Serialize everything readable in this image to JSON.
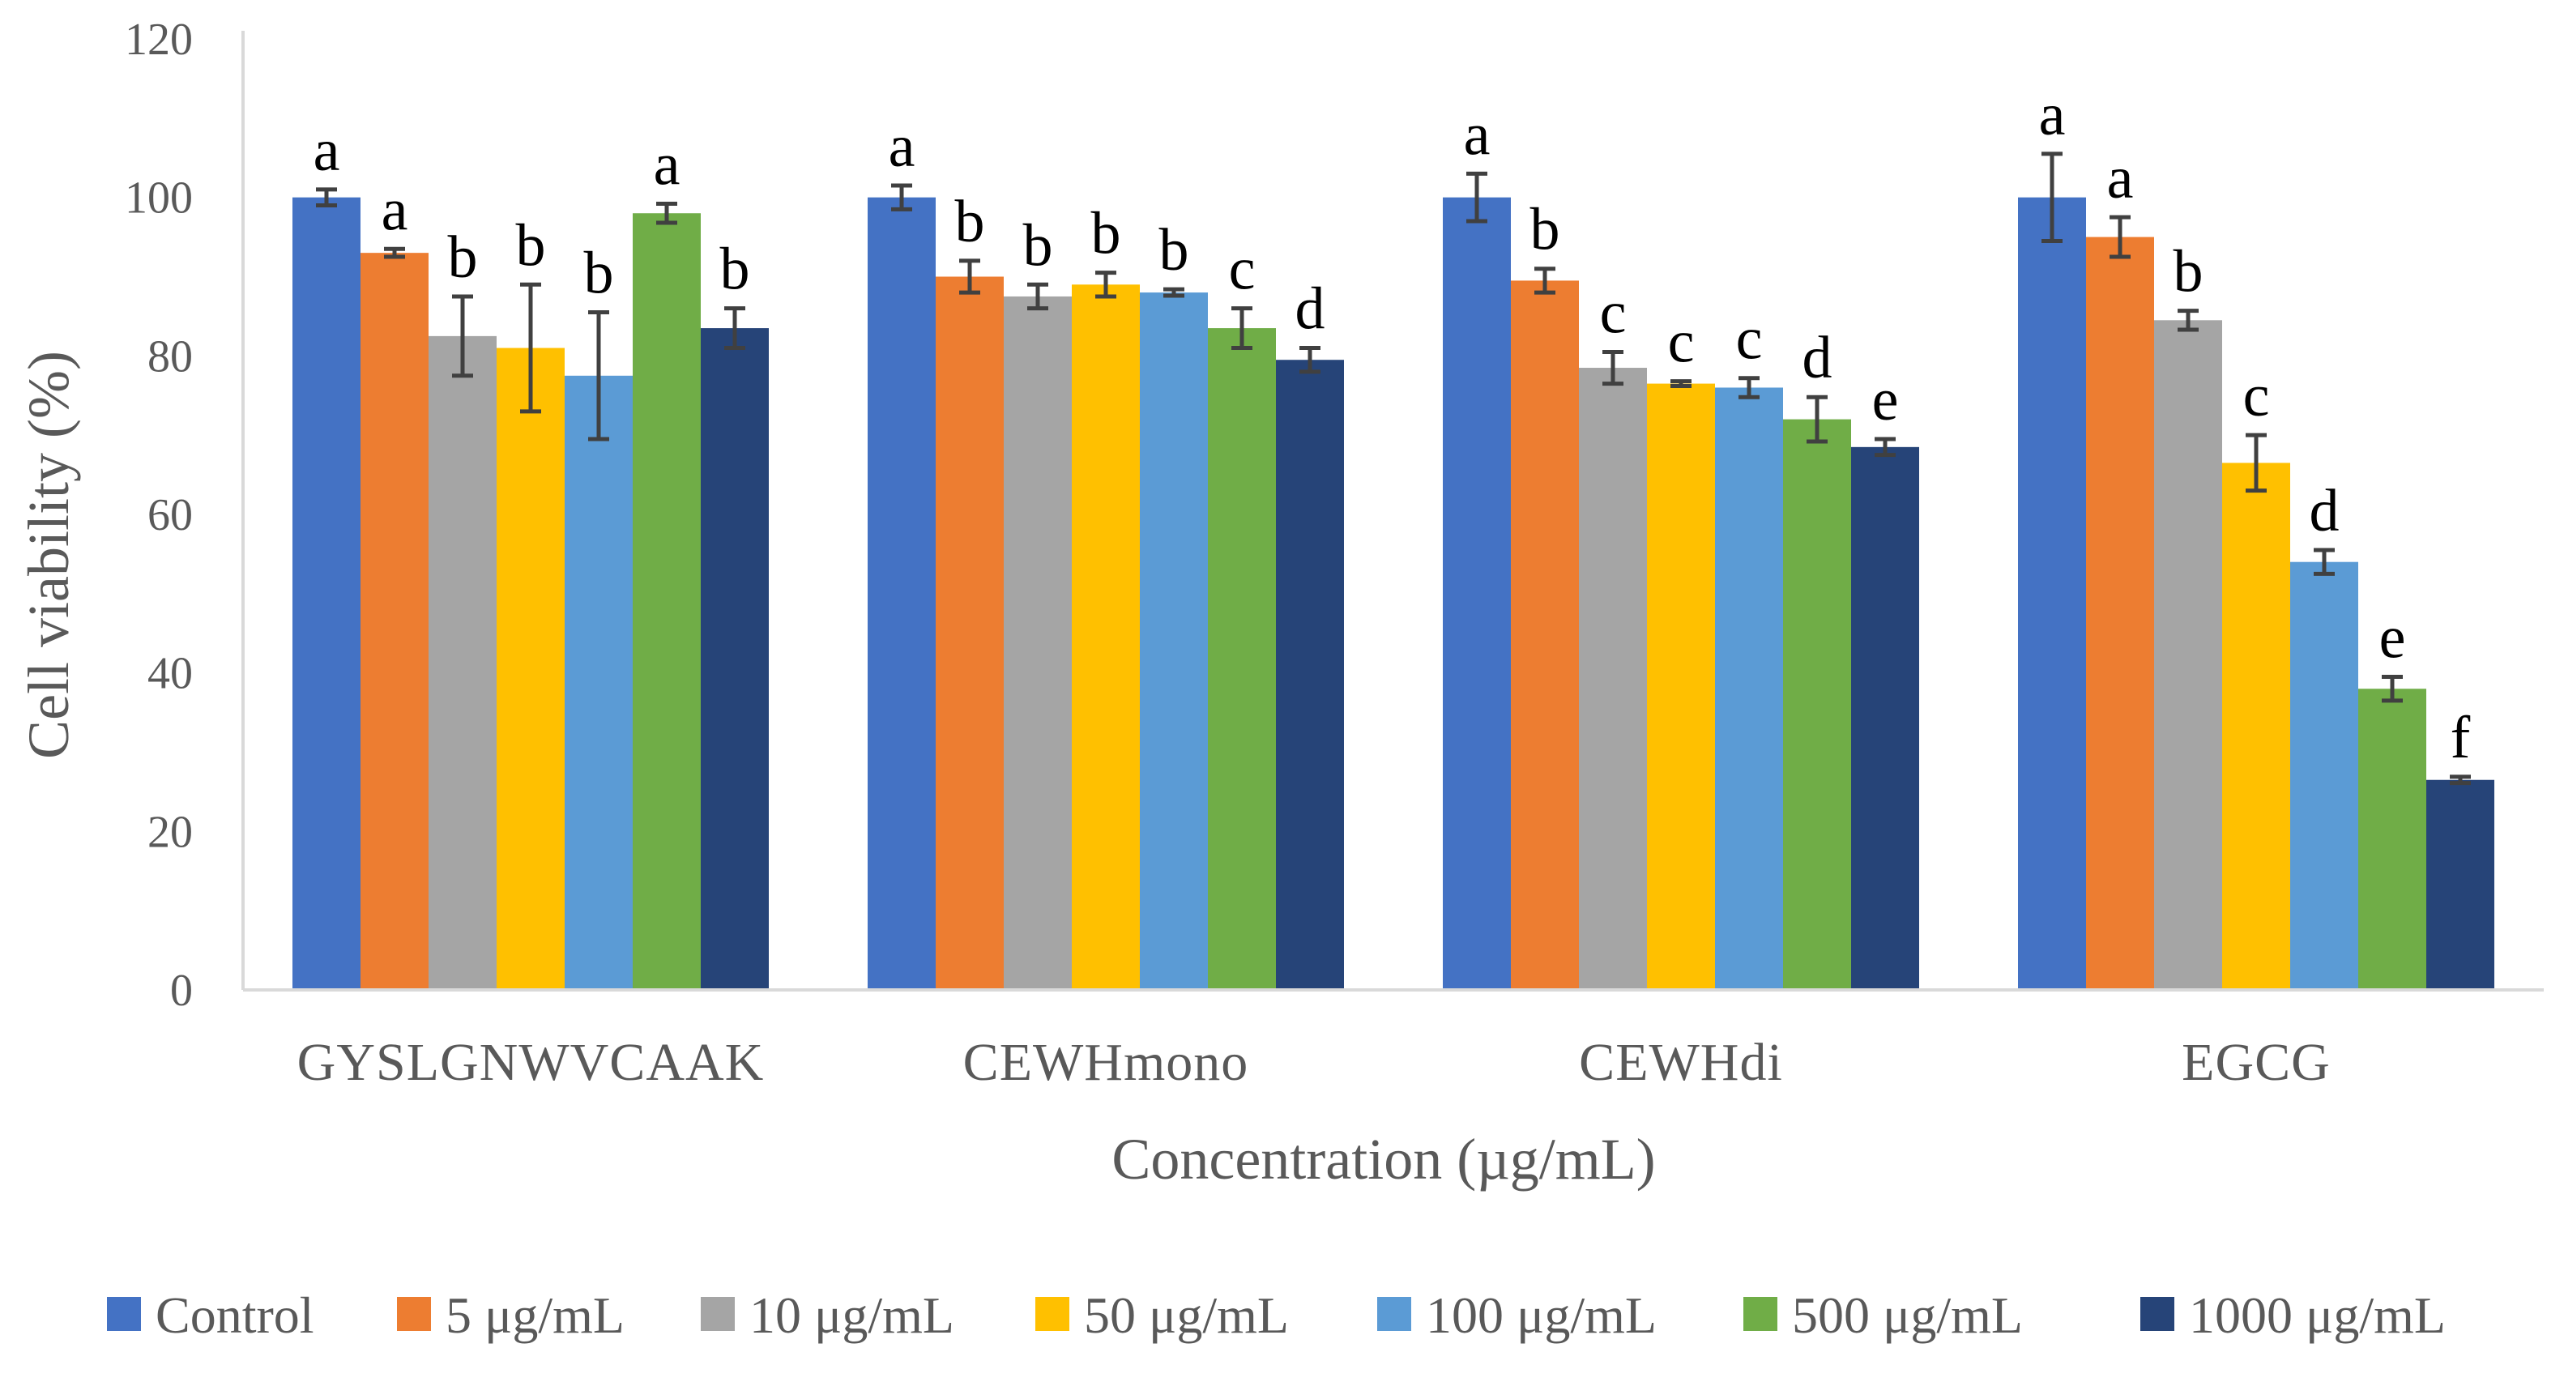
{
  "chart_data": {
    "type": "bar",
    "title": "",
    "xlabel": "Concentration (µg/mL)",
    "ylabel": "Cell viability (%)",
    "ylim": [
      0,
      120
    ],
    "yticks": [
      0,
      20,
      40,
      60,
      80,
      100,
      120
    ],
    "grid": false,
    "legend_position": "bottom",
    "categories": [
      "GYSLGNWVCAAK",
      "CEWHmono",
      "CEWHdi",
      "EGCG"
    ],
    "series": [
      {
        "name": "Control",
        "color": "#4472C4",
        "values": [
          100,
          100,
          100,
          100
        ],
        "errors": [
          1.0,
          1.5,
          3.0,
          5.5
        ],
        "labels": [
          "a",
          "a",
          "a",
          "a"
        ]
      },
      {
        "name": "5 μg/mL",
        "color": "#ED7D31",
        "values": [
          93,
          90,
          89.5,
          95
        ],
        "errors": [
          0.5,
          2.0,
          1.5,
          2.5
        ],
        "labels": [
          "a",
          "b",
          "b",
          "a"
        ]
      },
      {
        "name": "10 μg/mL",
        "color": "#A5A5A5",
        "values": [
          82.5,
          87.5,
          78.5,
          84.5
        ],
        "errors": [
          5.0,
          1.5,
          2.0,
          1.2
        ],
        "labels": [
          "b",
          "b",
          "c",
          "b"
        ]
      },
      {
        "name": "50 μg/mL",
        "color": "#FFC000",
        "values": [
          81,
          89,
          76.5,
          66.5
        ],
        "errors": [
          8.0,
          1.5,
          0.3,
          3.5
        ],
        "labels": [
          "b",
          "b",
          "c",
          "c"
        ]
      },
      {
        "name": "100 μg/mL",
        "color": "#5B9BD5",
        "values": [
          77.5,
          88,
          76,
          54
        ],
        "errors": [
          8.0,
          0.4,
          1.2,
          1.5
        ],
        "labels": [
          "b",
          "b",
          "c",
          "d"
        ]
      },
      {
        "name": "500 μg/mL",
        "color": "#70AD47",
        "values": [
          98,
          83.5,
          72,
          38
        ],
        "errors": [
          1.2,
          2.5,
          2.8,
          1.5
        ],
        "labels": [
          "a",
          "c",
          "d",
          "e"
        ]
      },
      {
        "name": "1000 μg/mL",
        "color": "#264478",
        "values": [
          83.5,
          79.5,
          68.5,
          26.5
        ],
        "errors": [
          2.5,
          1.5,
          1.0,
          0.4
        ],
        "labels": [
          "b",
          "d",
          "e",
          "f"
        ]
      }
    ]
  },
  "colors": {
    "axis": "#D9D9D9",
    "error_bar": "#404040",
    "text": "#595959"
  }
}
